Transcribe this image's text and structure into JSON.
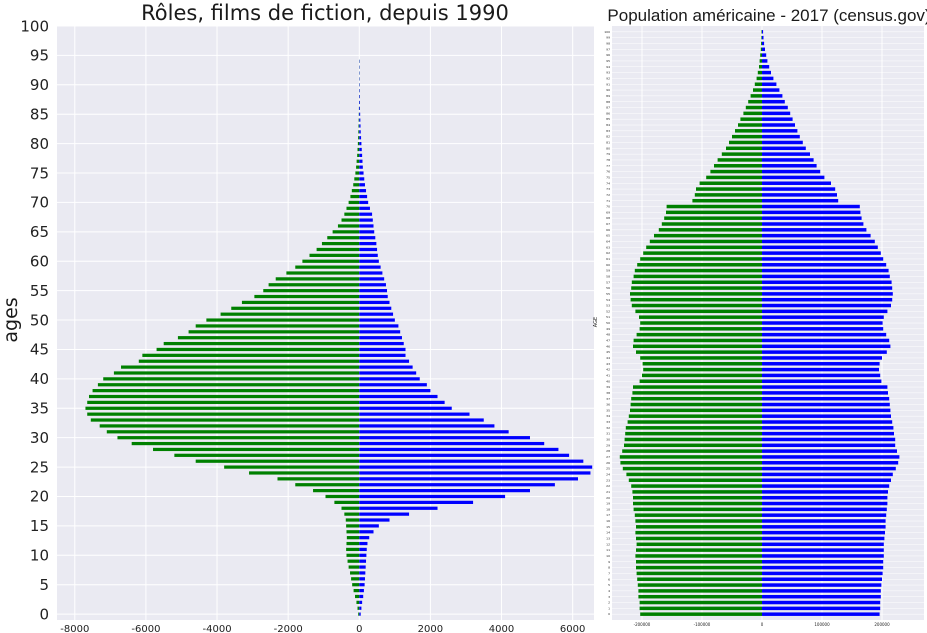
{
  "charts": [
    {
      "type": "bar",
      "orientation": "horizontal",
      "title": "Rôles, films de fiction, depuis 1990",
      "ylabel": "ages",
      "xlim": [
        -8500,
        6600
      ],
      "ylim": [
        -1,
        100
      ],
      "xticks": [
        -8000,
        -6000,
        -4000,
        -2000,
        0,
        2000,
        4000,
        6000
      ],
      "yticks": [
        0,
        5,
        10,
        15,
        20,
        25,
        30,
        35,
        40,
        45,
        50,
        55,
        60,
        65,
        70,
        75,
        80,
        85,
        90,
        95,
        100
      ],
      "grid": true,
      "colors": {
        "negative": "#008000",
        "positive": "#0000ff",
        "background": "#eaeaf2",
        "grid": "#ffffff"
      },
      "series": [
        {
          "color": "negative",
          "ages": [
            0,
            1,
            2,
            3,
            4,
            5,
            6,
            7,
            8,
            9,
            10,
            11,
            12,
            13,
            14,
            15,
            16,
            17,
            18,
            19,
            20,
            21,
            22,
            23,
            24,
            25,
            26,
            27,
            28,
            29,
            30,
            31,
            32,
            33,
            34,
            35,
            36,
            37,
            38,
            39,
            40,
            41,
            42,
            43,
            44,
            45,
            46,
            47,
            48,
            49,
            50,
            51,
            52,
            53,
            54,
            55,
            56,
            57,
            58,
            59,
            60,
            61,
            62,
            63,
            64,
            65,
            66,
            67,
            68,
            69,
            70,
            71,
            72,
            73,
            74,
            75,
            76,
            77,
            78,
            79,
            80,
            81,
            82,
            83,
            84,
            85,
            86,
            87,
            88,
            89,
            90,
            91,
            92,
            93,
            94
          ],
          "values": [
            -30,
            -50,
            -80,
            -120,
            -160,
            -200,
            -230,
            -260,
            -300,
            -330,
            -360,
            -370,
            -360,
            -350,
            -360,
            -370,
            -380,
            -420,
            -500,
            -700,
            -950,
            -1300,
            -1800,
            -2300,
            -3100,
            -3800,
            -4600,
            -5200,
            -5800,
            -6400,
            -6800,
            -7100,
            -7300,
            -7550,
            -7650,
            -7700,
            -7650,
            -7600,
            -7500,
            -7350,
            -7200,
            -6900,
            -6700,
            -6200,
            -6100,
            -5700,
            -5500,
            -5100,
            -4800,
            -4600,
            -4300,
            -3900,
            -3600,
            -3300,
            -2950,
            -2700,
            -2550,
            -2350,
            -2050,
            -1800,
            -1600,
            -1400,
            -1200,
            -1050,
            -900,
            -750,
            -600,
            -500,
            -420,
            -360,
            -300,
            -250,
            -210,
            -170,
            -140,
            -110,
            -90,
            -75,
            -60,
            -50,
            -40,
            -33,
            -27,
            -22,
            -18,
            -14,
            -11,
            -8,
            -6,
            -5,
            -4,
            -3,
            -2,
            -2,
            -1
          ]
        },
        {
          "color": "positive",
          "ages": [
            0,
            1,
            2,
            3,
            4,
            5,
            6,
            7,
            8,
            9,
            10,
            11,
            12,
            13,
            14,
            15,
            16,
            17,
            18,
            19,
            20,
            21,
            22,
            23,
            24,
            25,
            26,
            27,
            28,
            29,
            30,
            31,
            32,
            33,
            34,
            35,
            36,
            37,
            38,
            39,
            40,
            41,
            42,
            43,
            44,
            45,
            46,
            47,
            48,
            49,
            50,
            51,
            52,
            53,
            54,
            55,
            56,
            57,
            58,
            59,
            60,
            61,
            62,
            63,
            64,
            65,
            66,
            67,
            68,
            69,
            70,
            71,
            72,
            73,
            74,
            75,
            76,
            77,
            78,
            79,
            80,
            81,
            82,
            83,
            84,
            85,
            86,
            87,
            88,
            89,
            90,
            91,
            92,
            93,
            94
          ],
          "values": [
            40,
            60,
            80,
            110,
            130,
            150,
            160,
            170,
            180,
            190,
            200,
            210,
            230,
            280,
            400,
            550,
            850,
            1400,
            2200,
            3200,
            4100,
            4800,
            5500,
            6150,
            6500,
            6550,
            6300,
            5900,
            5600,
            5200,
            4800,
            4200,
            3800,
            3500,
            3100,
            2600,
            2400,
            2200,
            2000,
            1900,
            1700,
            1600,
            1500,
            1400,
            1300,
            1300,
            1250,
            1200,
            1150,
            1100,
            1000,
            950,
            900,
            850,
            800,
            780,
            750,
            700,
            650,
            600,
            550,
            520,
            500,
            480,
            450,
            420,
            400,
            380,
            360,
            300,
            250,
            220,
            190,
            160,
            140,
            120,
            100,
            90,
            80,
            70,
            60,
            50,
            40,
            35,
            30,
            25,
            20,
            18,
            15,
            12,
            10,
            8,
            6,
            5,
            4
          ]
        }
      ]
    },
    {
      "type": "bar",
      "orientation": "horizontal",
      "title": "Population américaine - 2017 (census.gov)",
      "ylabel": "AGE",
      "xlim": [
        -250000,
        270000
      ],
      "ylim": [
        -1,
        101
      ],
      "xticks": [
        -200000,
        -100000,
        0,
        100000,
        200000
      ],
      "grid": true,
      "colors": {
        "negative": "#008000",
        "positive": "#0000ff",
        "background": "#eaeaf2",
        "grid": "#ffffff"
      },
      "series": [
        {
          "color": "negative",
          "ages": [
            0,
            1,
            2,
            3,
            4,
            5,
            6,
            7,
            8,
            9,
            10,
            11,
            12,
            13,
            14,
            15,
            16,
            17,
            18,
            19,
            20,
            21,
            22,
            23,
            24,
            25,
            26,
            27,
            28,
            29,
            30,
            31,
            32,
            33,
            34,
            35,
            36,
            37,
            38,
            39,
            40,
            41,
            42,
            43,
            44,
            45,
            46,
            47,
            48,
            49,
            50,
            51,
            52,
            53,
            54,
            55,
            56,
            57,
            58,
            59,
            60,
            61,
            62,
            63,
            64,
            65,
            66,
            67,
            68,
            69,
            70,
            71,
            72,
            73,
            74,
            75,
            76,
            77,
            78,
            79,
            80,
            81,
            82,
            83,
            84,
            85,
            86,
            87,
            88,
            89,
            90,
            91,
            92,
            93,
            94,
            95,
            96,
            97,
            98,
            99,
            100
          ],
          "values": [
            -203000,
            -204000,
            -204000,
            -206000,
            -206000,
            -207000,
            -208000,
            -209000,
            -210000,
            -210000,
            -211000,
            -210000,
            -209000,
            -210000,
            -211000,
            -210000,
            -211000,
            -212000,
            -214000,
            -215000,
            -215000,
            -216000,
            -218000,
            -222000,
            -226000,
            -232000,
            -236000,
            -237000,
            -233000,
            -230000,
            -229000,
            -228000,
            -227000,
            -224000,
            -222000,
            -220000,
            -219000,
            -218000,
            -216000,
            -215000,
            -204000,
            -200000,
            -198000,
            -199000,
            -203000,
            -210000,
            -215000,
            -214000,
            -209000,
            -204000,
            -203000,
            -205000,
            -211000,
            -217000,
            -219000,
            -220000,
            -218000,
            -217000,
            -214000,
            -212000,
            -208000,
            -203000,
            -198000,
            -193000,
            -187000,
            -180000,
            -172000,
            -167000,
            -163000,
            -160000,
            -159000,
            -116000,
            -112000,
            -110000,
            -104000,
            -93000,
            -86000,
            -80000,
            -74000,
            -67000,
            -60000,
            -55000,
            -50000,
            -45000,
            -40000,
            -36000,
            -31000,
            -27000,
            -23000,
            -19000,
            -15000,
            -12000,
            -9000,
            -7000,
            -5000,
            -4000,
            -3000,
            -2000,
            -1500,
            -1000,
            -800
          ]
        },
        {
          "color": "positive",
          "ages": [
            0,
            1,
            2,
            3,
            4,
            5,
            6,
            7,
            8,
            9,
            10,
            11,
            12,
            13,
            14,
            15,
            16,
            17,
            18,
            19,
            20,
            21,
            22,
            23,
            24,
            25,
            26,
            27,
            28,
            29,
            30,
            31,
            32,
            33,
            34,
            35,
            36,
            37,
            38,
            39,
            40,
            41,
            42,
            43,
            44,
            45,
            46,
            47,
            48,
            49,
            50,
            51,
            52,
            53,
            54,
            55,
            56,
            57,
            58,
            59,
            60,
            61,
            62,
            63,
            64,
            65,
            66,
            67,
            68,
            69,
            70,
            71,
            72,
            73,
            74,
            75,
            76,
            77,
            78,
            79,
            80,
            81,
            82,
            83,
            84,
            85,
            86,
            87,
            88,
            89,
            90,
            91,
            92,
            93,
            94,
            95,
            96,
            97,
            98,
            99,
            100
          ],
          "values": [
            196000,
            197000,
            197000,
            198000,
            198000,
            199000,
            200000,
            201000,
            202000,
            202000,
            203000,
            203000,
            203000,
            204000,
            205000,
            206000,
            206000,
            207000,
            208000,
            209000,
            209000,
            210000,
            212000,
            215000,
            218000,
            223000,
            227000,
            229000,
            225000,
            222000,
            222000,
            220000,
            219000,
            217000,
            215000,
            214000,
            213000,
            212000,
            210000,
            209000,
            199000,
            197000,
            195000,
            196000,
            200000,
            208000,
            214000,
            212000,
            207000,
            202000,
            201000,
            203000,
            209000,
            215000,
            217000,
            218000,
            217000,
            216000,
            213000,
            211000,
            207000,
            202000,
            198000,
            193000,
            188000,
            181000,
            174000,
            169000,
            166000,
            164000,
            163000,
            127000,
            125000,
            122000,
            115000,
            104000,
            97000,
            91000,
            86000,
            80000,
            73000,
            68000,
            63000,
            59000,
            55000,
            51000,
            47000,
            43000,
            38000,
            34000,
            29000,
            24000,
            19000,
            15000,
            12000,
            9000,
            7000,
            5000,
            3500,
            2500,
            1800
          ]
        }
      ]
    }
  ]
}
